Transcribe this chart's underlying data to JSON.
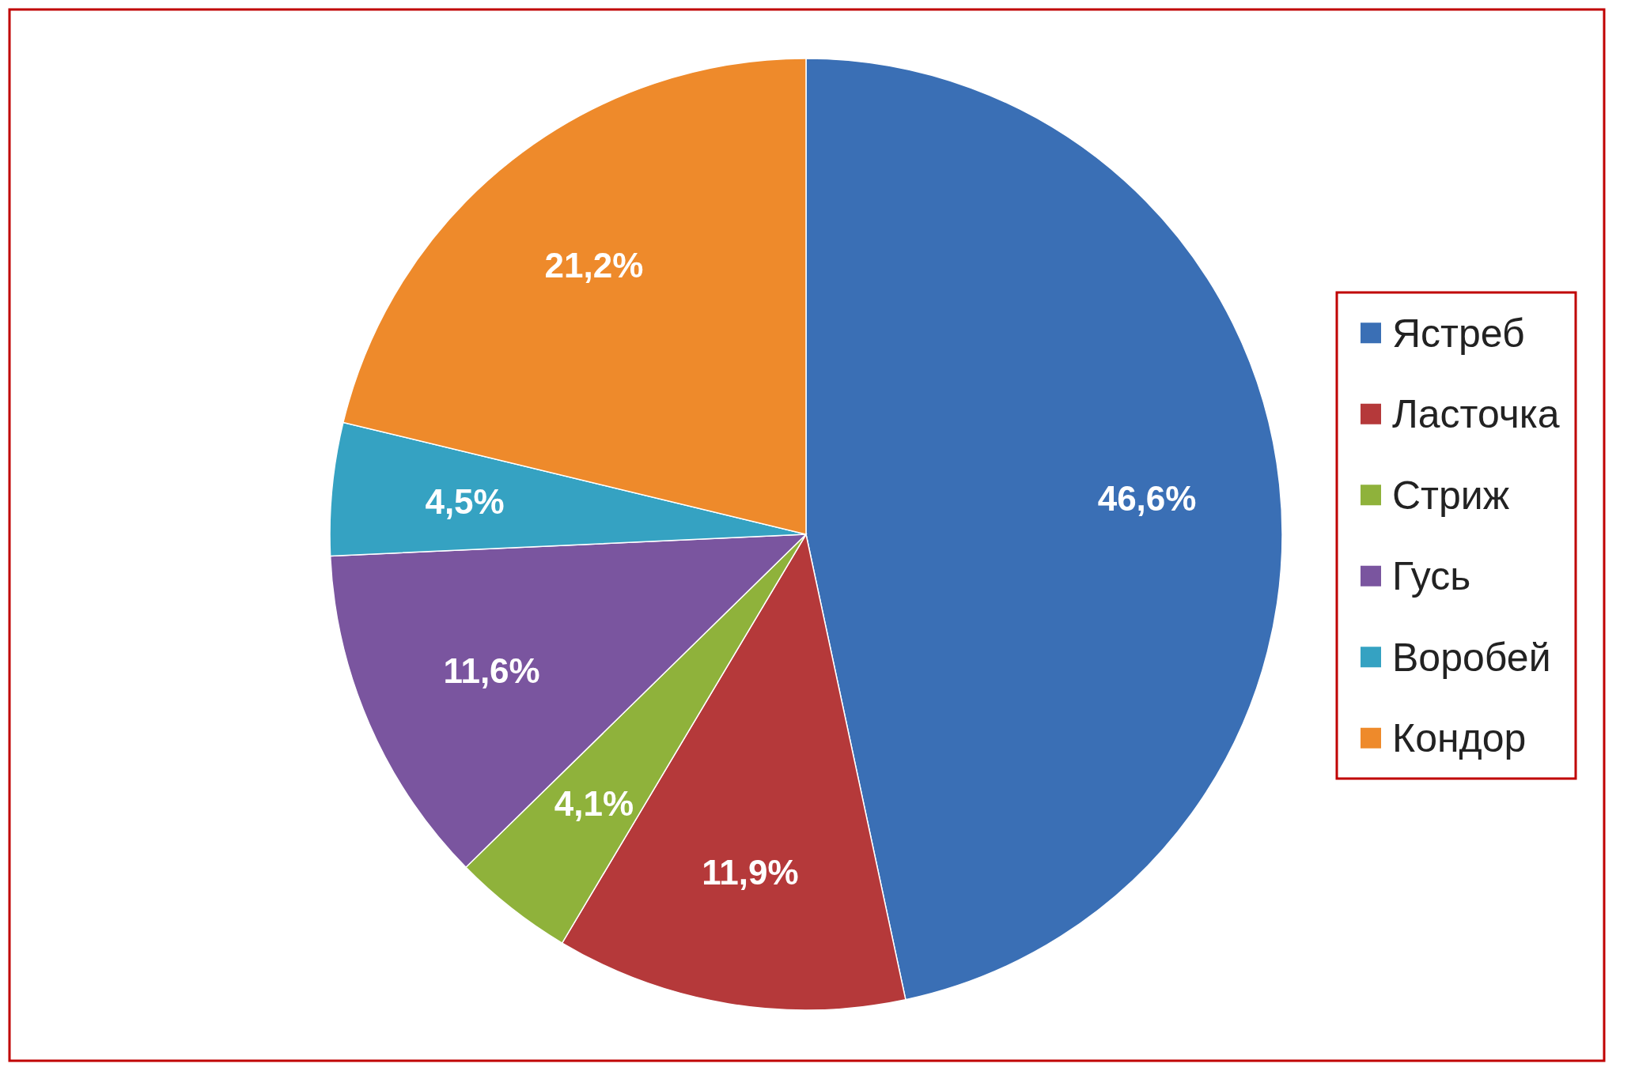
{
  "chart_data": {
    "type": "pie",
    "categories": [
      "Ястреб",
      "Ласточка",
      "Стриж",
      "Гусь",
      "Воробей",
      "Кондор"
    ],
    "values": [
      46.6,
      11.9,
      4.1,
      11.6,
      4.5,
      21.2
    ],
    "colors": [
      "#3a6fb5",
      "#b5393a",
      "#8fb23b",
      "#7a559f",
      "#35a2c2",
      "#ee8a2b"
    ],
    "value_labels": [
      "46,6%",
      "11,9%",
      "4,1%",
      "11,6%",
      "4,5%",
      "21,2%"
    ],
    "legend": "right"
  }
}
